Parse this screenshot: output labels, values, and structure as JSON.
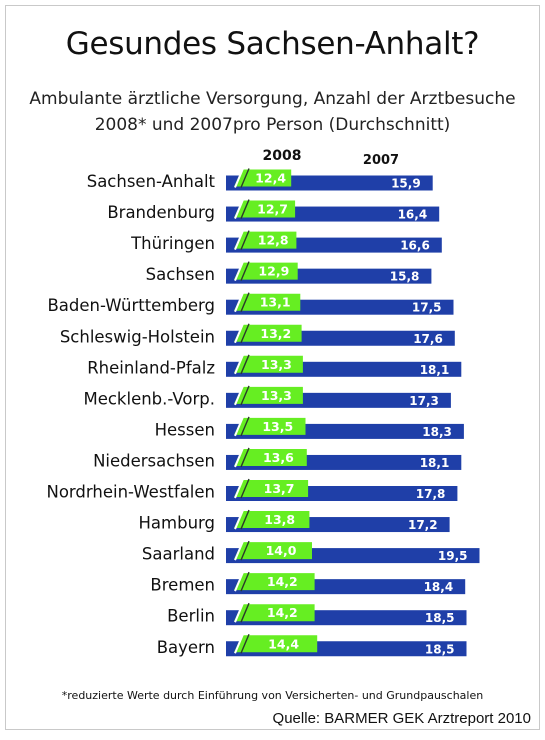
{
  "header": {
    "title": "Gesundes Sachsen-Anhalt?",
    "subtitle_line1": "Ambulante ärztliche Versorgung, Anzahl der Arztbesuche",
    "subtitle_line2": "2008* und 2007pro Person (Durchschnitt)"
  },
  "chart_data": {
    "type": "bar",
    "orientation": "horizontal",
    "title": "Gesundes Sachsen-Anhalt?",
    "subtitle": "Ambulante ärztliche Versorgung, Anzahl der Arztbesuche 2008* und 2007pro Person (Durchschnitt)",
    "xlabel": "",
    "ylabel": "",
    "legend_position": "top",
    "grid": false,
    "xlim": [
      0,
      20
    ],
    "categories": [
      "Sachsen-Anhalt",
      "Brandenburg",
      "Thüringen",
      "Sachsen",
      "Baden-Württemberg",
      "Schleswig-Holstein",
      "Rheinland-Pfalz",
      "Mecklenb.-Vorp.",
      "Hessen",
      "Niedersachsen",
      "Nordrhein-Westfalen",
      "Hamburg",
      "Saarland",
      "Bremen",
      "Berlin",
      "Bayern"
    ],
    "series": [
      {
        "name": "2008",
        "color": "#66ee22",
        "values": [
          12.4,
          12.7,
          12.8,
          12.9,
          13.1,
          13.2,
          13.3,
          13.3,
          13.5,
          13.6,
          13.7,
          13.8,
          14.0,
          14.2,
          14.2,
          14.4
        ],
        "labels": [
          "12,4",
          "12,7",
          "12,8",
          "12,9",
          "13,1",
          "13,2",
          "13,3",
          "13,3",
          "13,5",
          "13,6",
          "13,7",
          "13,8",
          "14,0",
          "14,2",
          "14,2",
          "14,4"
        ]
      },
      {
        "name": "2007",
        "color": "#1f3fa8",
        "values": [
          15.9,
          16.4,
          16.6,
          15.8,
          17.5,
          17.6,
          18.1,
          17.3,
          18.3,
          18.1,
          17.8,
          17.2,
          19.5,
          18.4,
          18.5,
          18.5
        ],
        "labels": [
          "15,9",
          "16,4",
          "16,6",
          "15,8",
          "17,5",
          "17,6",
          "18,1",
          "17,3",
          "18,3",
          "18,1",
          "17,8",
          "17,2",
          "19,5",
          "18,4",
          "18,5",
          "18,5"
        ]
      }
    ]
  },
  "footer": {
    "footnote": "*reduzierte Werte durch Einführung von Versicherten- und Grundpauschalen",
    "source": "Quelle: BARMER GEK Arztreport 2010"
  }
}
